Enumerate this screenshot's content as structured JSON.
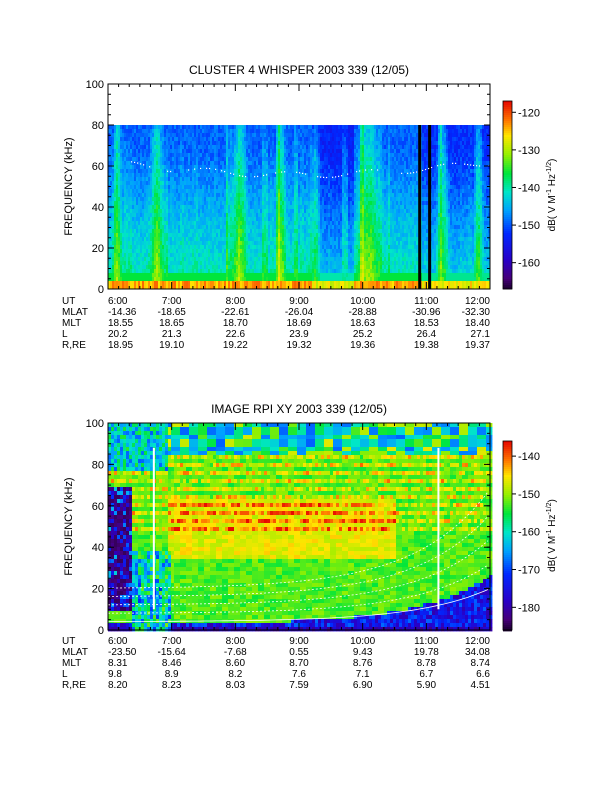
{
  "chart_data": [
    {
      "type": "heatmap",
      "title": "CLUSTER 4 WHISPER 2003 339 (12/05)",
      "ylabel": "FREQUENCY (kHz)",
      "ylim": [
        0,
        100
      ],
      "y_ticks": [
        "0",
        "20",
        "40",
        "60",
        "80",
        "100"
      ],
      "x_ticks": [
        "6:00",
        "7:00",
        "8:00",
        "9:00",
        "10:00",
        "11:00",
        "12:00"
      ],
      "data_top_khz": 80,
      "colorbar": {
        "label": "dB( V M",
        "label_sup1": "-1",
        "label_mid": " Hz",
        "label_sup2": "-1/2",
        "label_end": ")",
        "range": [
          -167,
          -117
        ],
        "ticks": [
          "-120",
          "-130",
          "-140",
          "-150",
          "-160"
        ]
      },
      "ephemeris": [
        {
          "name": "UT",
          "values": [
            "6:00",
            "7:00",
            "8:00",
            "9:00",
            "10:00",
            "11:00",
            "12:00"
          ]
        },
        {
          "name": "MLAT",
          "values": [
            "-14.36",
            "-18.65",
            "-22.61",
            "-26.04",
            "-28.88",
            "-30.96",
            "-32.30"
          ]
        },
        {
          "name": "MLT",
          "values": [
            "18.55",
            "18.65",
            "18.70",
            "18.69",
            "18.63",
            "18.53",
            "18.40"
          ]
        },
        {
          "name": "L",
          "values": [
            "20.2",
            "21.3",
            "22.6",
            "23.9",
            "25.2",
            "26.4",
            "27.1"
          ]
        },
        {
          "name": "R,RE",
          "values": [
            "18.95",
            "19.10",
            "19.22",
            "19.32",
            "19.36",
            "19.38",
            "19.37"
          ]
        }
      ]
    },
    {
      "type": "heatmap",
      "title": "IMAGE RPI XY 2003 339 (12/05)",
      "ylabel": "FREQUENCY (kHz)",
      "ylim": [
        0,
        100
      ],
      "y_ticks": [
        "0",
        "20",
        "40",
        "60",
        "80",
        "100"
      ],
      "x_ticks": [
        "6:00",
        "7:00",
        "8:00",
        "9:00",
        "10:00",
        "11:00",
        "12:00"
      ],
      "colorbar": {
        "label": "dB( V M",
        "label_sup1": "-1",
        "label_mid": " Hz",
        "label_sup2": "-1/2",
        "label_end": ")",
        "range": [
          -186,
          -136
        ],
        "ticks": [
          "-140",
          "-150",
          "-160",
          "-170",
          "-180"
        ]
      },
      "ephemeris": [
        {
          "name": "UT",
          "values": [
            "6:00",
            "7:00",
            "8:00",
            "9:00",
            "10:00",
            "11:00",
            "12:00"
          ]
        },
        {
          "name": "MLAT",
          "values": [
            "-23.50",
            "-15.64",
            "-7.68",
            "0.55",
            "9.43",
            "19.78",
            "34.08"
          ]
        },
        {
          "name": "MLT",
          "values": [
            "8.31",
            "8.46",
            "8.60",
            "8.70",
            "8.76",
            "8.78",
            "8.74"
          ]
        },
        {
          "name": "L",
          "values": [
            "9.8",
            "8.9",
            "8.2",
            "7.6",
            "7.1",
            "6.7",
            "6.6"
          ]
        },
        {
          "name": "R,RE",
          "values": [
            "8.20",
            "8.23",
            "8.03",
            "7.59",
            "6.90",
            "5.90",
            "4.51"
          ]
        }
      ]
    }
  ]
}
